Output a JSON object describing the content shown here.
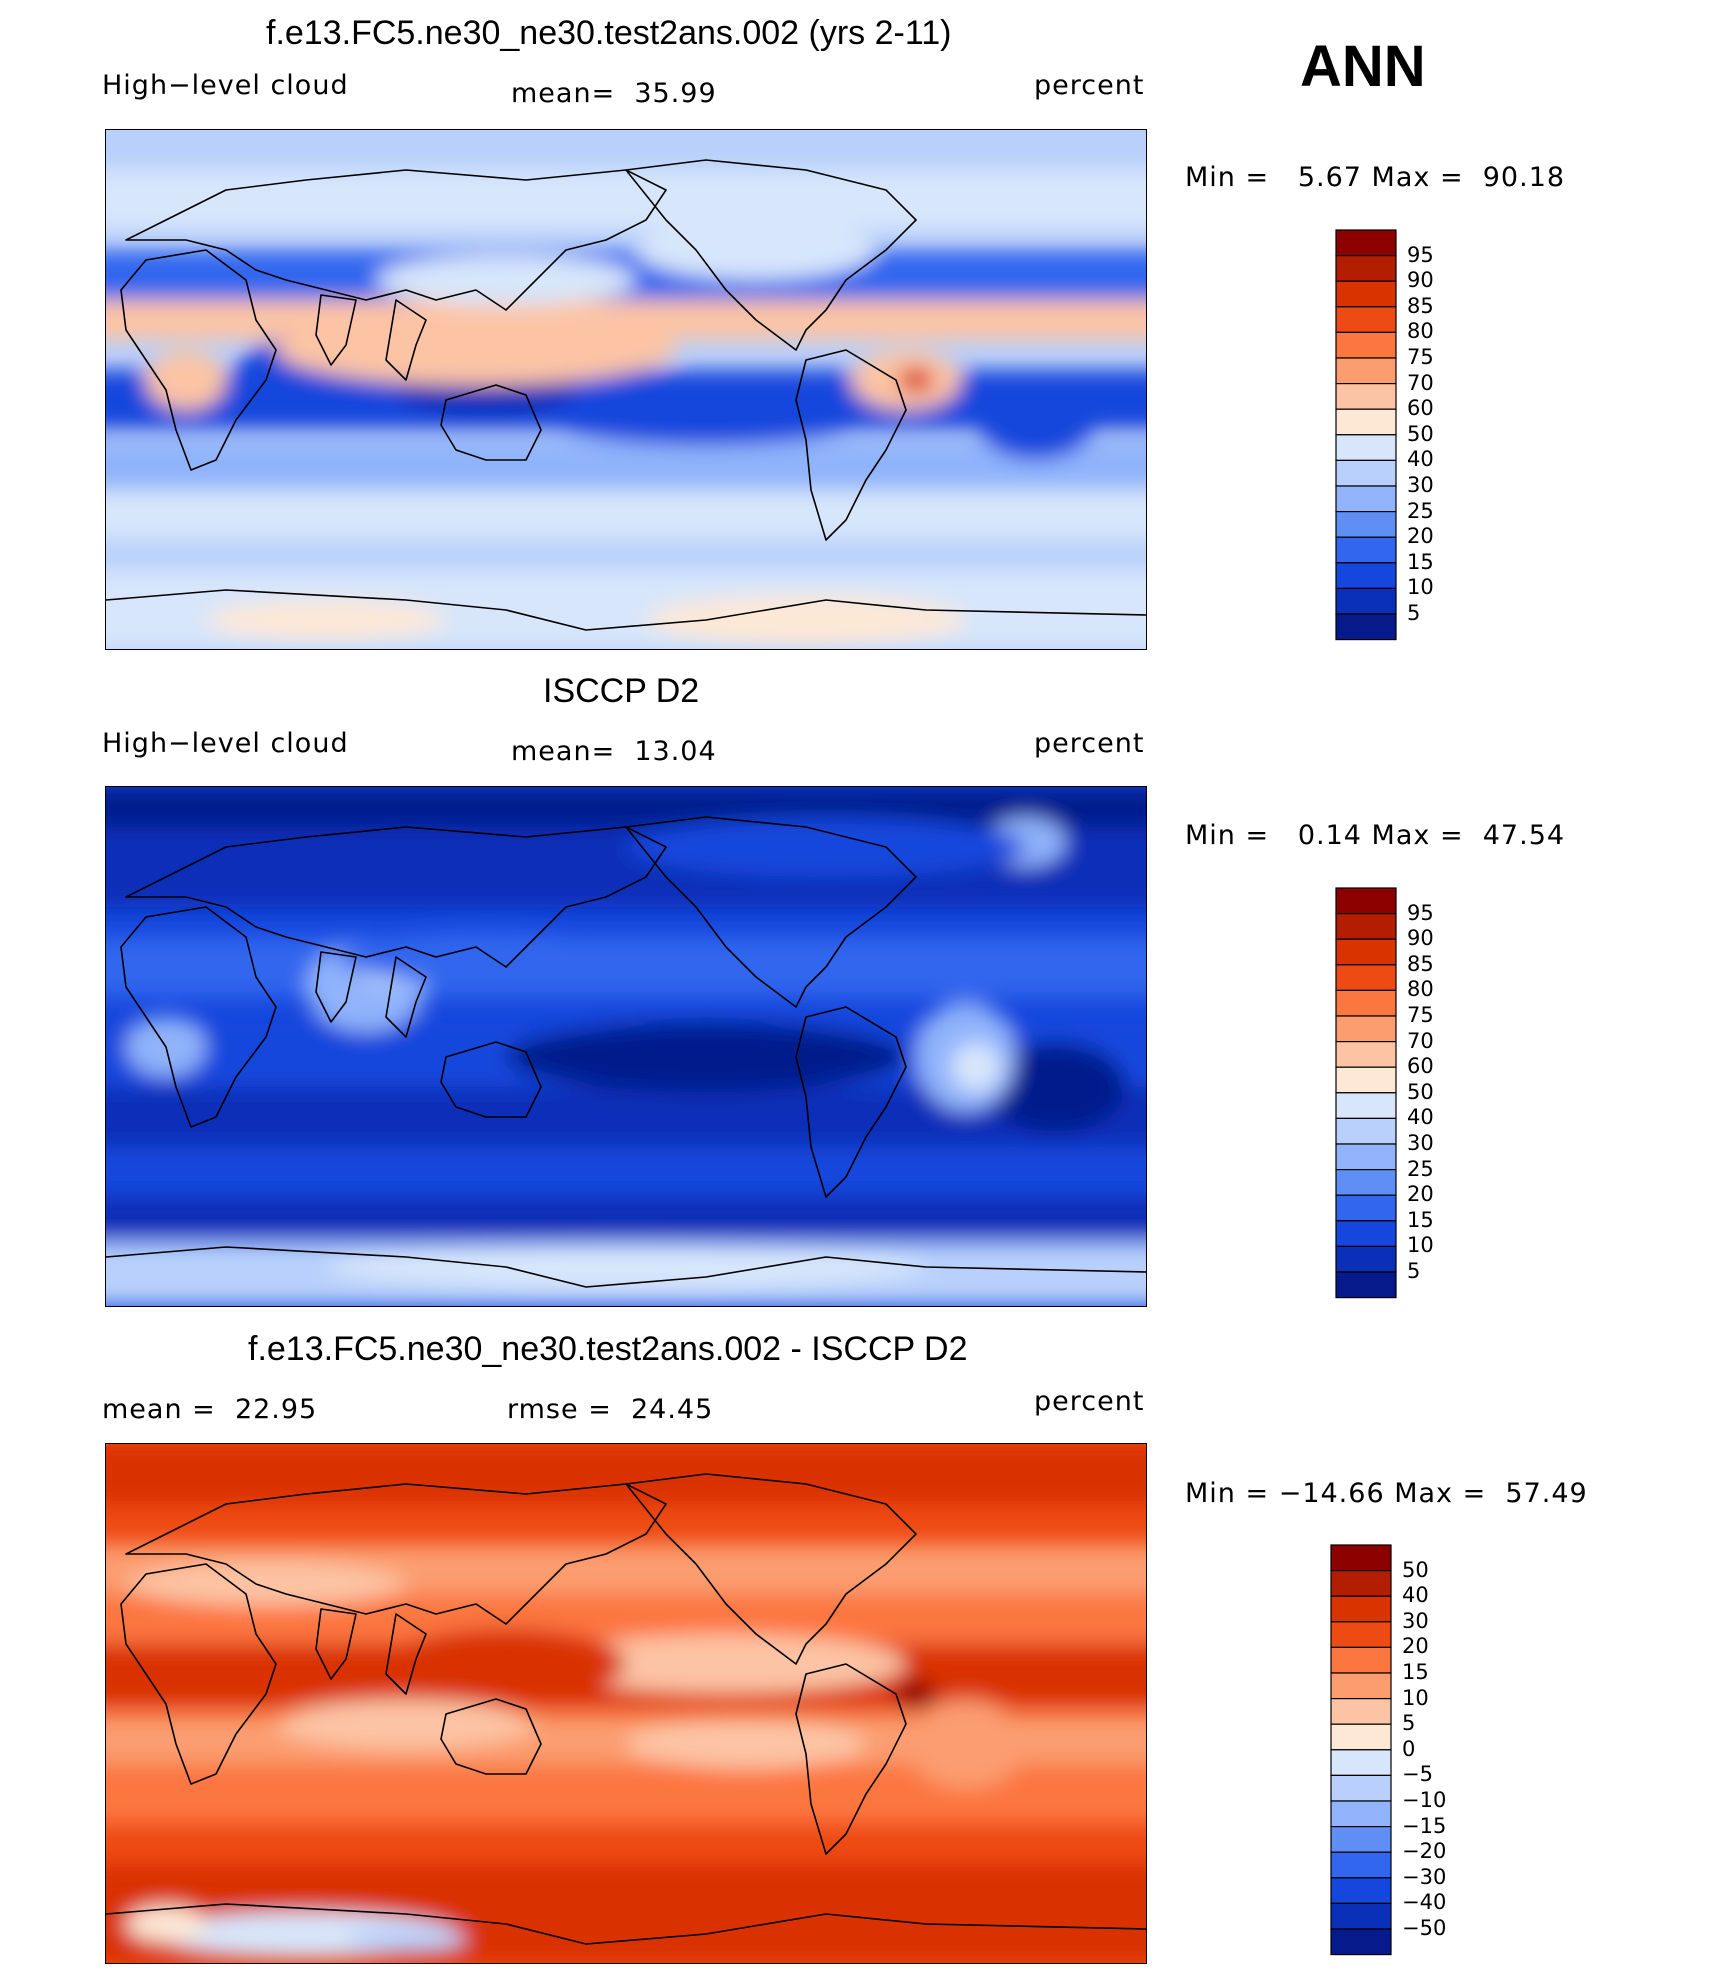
{
  "season": "ANN",
  "units": "percent",
  "panels": [
    {
      "title": "f.e13.FC5.ne30_ne30.test2ans.002 (yrs 2-11)",
      "variable": "High−level cloud",
      "stat1": "mean=  35.99",
      "stat2": "",
      "unit": "percent",
      "minmax": "Min =   5.67 Max =  90.18",
      "scheme": "model",
      "colorbar": {
        "labels": [
          "95",
          "90",
          "85",
          "80",
          "75",
          "70",
          "60",
          "50",
          "40",
          "30",
          "25",
          "20",
          "15",
          "10",
          "5"
        ],
        "colors": [
          "#8c0000",
          "#b31d00",
          "#d93300",
          "#ee4a14",
          "#fc7640",
          "#fb9d6f",
          "#fcc4a4",
          "#fde8d6",
          "#d7e6fb",
          "#b8d0fb",
          "#90b3fb",
          "#5f8ef5",
          "#3366ee",
          "#1546dd",
          "#0a2fb8",
          "#061a8c"
        ]
      }
    },
    {
      "title": "ISCCP D2",
      "variable": "High−level cloud",
      "stat1": "mean=  13.04",
      "stat2": "",
      "unit": "percent",
      "minmax": "Min =   0.14 Max =  47.54",
      "scheme": "obs",
      "colorbar": {
        "labels": [
          "95",
          "90",
          "85",
          "80",
          "75",
          "70",
          "60",
          "50",
          "40",
          "30",
          "25",
          "20",
          "15",
          "10",
          "5"
        ],
        "colors": [
          "#8c0000",
          "#b31d00",
          "#d93300",
          "#ee4a14",
          "#fc7640",
          "#fb9d6f",
          "#fcc4a4",
          "#fde8d6",
          "#d7e6fb",
          "#b8d0fb",
          "#90b3fb",
          "#5f8ef5",
          "#3366ee",
          "#1546dd",
          "#0a2fb8",
          "#061a8c"
        ]
      }
    },
    {
      "title": "f.e13.FC5.ne30_ne30.test2ans.002 - ISCCP D2",
      "variable": "",
      "stat1": "mean =  22.95",
      "stat2": "rmse =  24.45",
      "unit": "percent",
      "minmax": "Min = −14.66 Max =  57.49",
      "scheme": "diff",
      "colorbar": {
        "labels": [
          "50",
          "40",
          "30",
          "20",
          "15",
          "10",
          "5",
          "0",
          "−5",
          "−10",
          "−15",
          "−20",
          "−30",
          "−40",
          "−50"
        ],
        "colors": [
          "#8c0000",
          "#b31d00",
          "#d93300",
          "#ee4a14",
          "#fc7640",
          "#fb9d6f",
          "#fcc4a4",
          "#fde8d6",
          "#d7e6fb",
          "#b8d0fb",
          "#90b3fb",
          "#5f8ef5",
          "#3366ee",
          "#1546dd",
          "#0a2fb8",
          "#061a8c"
        ]
      }
    }
  ]
}
